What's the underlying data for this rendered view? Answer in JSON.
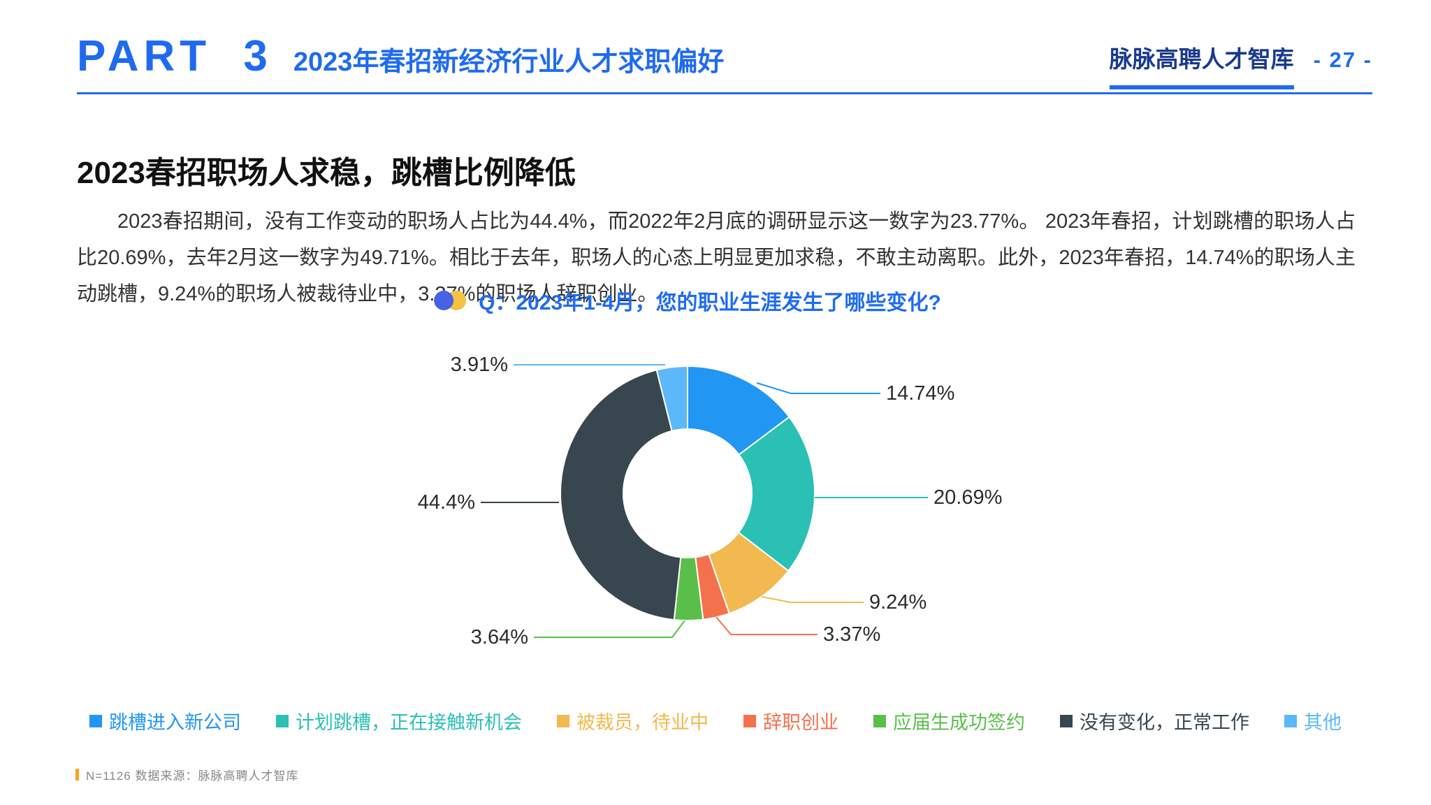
{
  "header": {
    "part_label": "PART 3",
    "title": "2023年春招新经济行业人才求职偏好",
    "brand": "脉脉高聘人才智库",
    "page_number": "- 27 -"
  },
  "section": {
    "title": "2023春招职场人求稳，跳槽比例降低",
    "paragraph": "2023春招期间，没有工作变动的职场人占比为44.4%，而2022年2月底的调研显示这一数字为23.77%。 2023年春招，计划跳槽的职场人占比20.69%，去年2月这一数字为49.71%。相比于去年，职场人的心态上明显更加求稳，不敢主动离职。此外，2023年春招，14.74%的职场人主动跳槽，9.24%的职场人被裁待业中，3.37%的职场人辞职创业。"
  },
  "chart": {
    "title": "Q：2023年1-4月，您的职业生涯发生了哪些变化?"
  },
  "chart_data": {
    "type": "pie",
    "subtype": "donut",
    "title": "Q：2023年1-4月，您的职业生涯发生了哪些变化?",
    "categories": [
      "跳槽进入新公司",
      "计划跳槽，正在接触新机会",
      "被裁员，待业中",
      "辞职创业",
      "应届生成功签约",
      "没有变化，正常工作",
      "其他"
    ],
    "values": [
      14.74,
      20.69,
      9.24,
      3.37,
      3.64,
      44.4,
      3.91
    ],
    "labels": [
      "14.74%",
      "20.69%",
      "9.24%",
      "3.37%",
      "3.64%",
      "44.4%",
      "3.91%"
    ],
    "colors": [
      "#2196f3",
      "#2bc0b4",
      "#f2b950",
      "#f4714d",
      "#5abf4a",
      "#37464f",
      "#5cb8f8"
    ],
    "legend_position": "bottom",
    "start_angle_deg": 0,
    "direction": "clockwise"
  },
  "footer": {
    "note": "N=1126  数据来源：脉脉高聘人才智库"
  },
  "theme": {
    "accent_blue": "#1f6bf0",
    "brand_navy": "#1a3a8e",
    "footer_bar_orange": "#f5a623"
  }
}
